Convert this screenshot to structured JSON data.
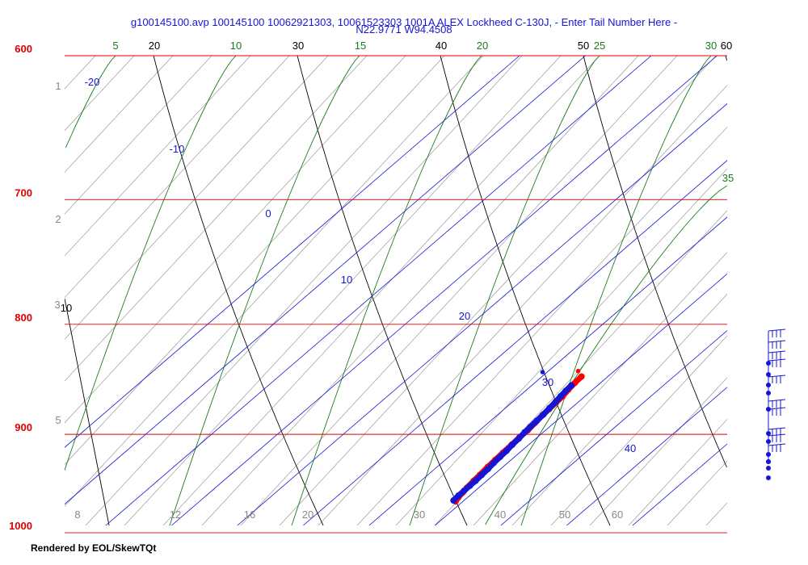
{
  "header": {
    "title_line1": "g100145100.avp 100145100 10062921303, 10061523303 1001A ALEX Lockheed C-130J, - Enter Tail Number Here -",
    "title_line2": "N22.9771 W94.4508"
  },
  "footer": {
    "text": "Rendered by EOL/SkewTQt"
  },
  "chart_data": {
    "type": "scatter",
    "subtype": "skew-t log-p diagram",
    "pressure_axis": {
      "labels": [
        "600",
        "700",
        "800",
        "900",
        "1000"
      ],
      "values": [
        600,
        700,
        800,
        900,
        1000
      ],
      "color": "#e00000",
      "log_scale": true
    },
    "isotherms": {
      "labels": [
        "-20",
        "-10",
        "0",
        "10",
        "20",
        "30",
        "40"
      ],
      "color": "#1515d6"
    },
    "bottom_labels": {
      "labels": [
        "8",
        "12",
        "16",
        "20",
        "30",
        "40",
        "50",
        "60"
      ],
      "color": "#888888"
    },
    "left_gray_labels": {
      "labels": [
        "1",
        "2",
        "3",
        "5"
      ],
      "color": "#888888"
    },
    "top_black_labels": {
      "labels": [
        "20",
        "30",
        "40",
        "50",
        "60",
        "10"
      ],
      "color": "#000000"
    },
    "top_green_labels": {
      "labels": [
        "5",
        "10",
        "15",
        "20",
        "25",
        "30",
        "35"
      ],
      "color": "#1a7a1a"
    },
    "series": [
      {
        "name": "temperature",
        "color": "#ff0000",
        "points": [
          [
            28.9,
            967
          ],
          [
            28.6,
            963
          ],
          [
            28.4,
            958
          ],
          [
            28.2,
            953
          ],
          [
            28.0,
            946
          ],
          [
            27.9,
            940
          ],
          [
            27.7,
            932
          ],
          [
            27.6,
            925
          ],
          [
            27.5,
            918
          ],
          [
            27.4,
            910
          ],
          [
            27.3,
            903
          ],
          [
            27.3,
            896
          ],
          [
            27.1,
            889
          ],
          [
            26.9,
            882
          ],
          [
            26.8,
            876
          ],
          [
            26.7,
            870
          ],
          [
            26.6,
            864
          ],
          [
            26.3,
            858
          ],
          [
            26.1,
            852
          ],
          [
            26.0,
            846
          ],
          [
            24.5,
            841
          ]
        ]
      },
      {
        "name": "dewpoint",
        "color": "#1515d6",
        "points": [
          [
            28.4,
            966
          ],
          [
            28.3,
            961
          ],
          [
            28.3,
            956
          ],
          [
            28.3,
            951
          ],
          [
            28.3,
            946
          ],
          [
            28.2,
            940
          ],
          [
            28.1,
            934
          ],
          [
            27.9,
            928
          ],
          [
            27.8,
            922
          ],
          [
            27.7,
            916
          ],
          [
            27.5,
            910
          ],
          [
            27.4,
            904
          ],
          [
            27.2,
            898
          ],
          [
            27.1,
            893
          ],
          [
            27.0,
            887
          ],
          [
            26.9,
            881
          ],
          [
            26.7,
            875
          ],
          [
            26.5,
            869
          ],
          [
            26.3,
            864
          ],
          [
            26.1,
            859
          ],
          [
            26.0,
            854
          ],
          [
            19.3,
            842
          ]
        ]
      }
    ],
    "wind_barbs": {
      "count": 10,
      "color": "#1515d6"
    }
  }
}
